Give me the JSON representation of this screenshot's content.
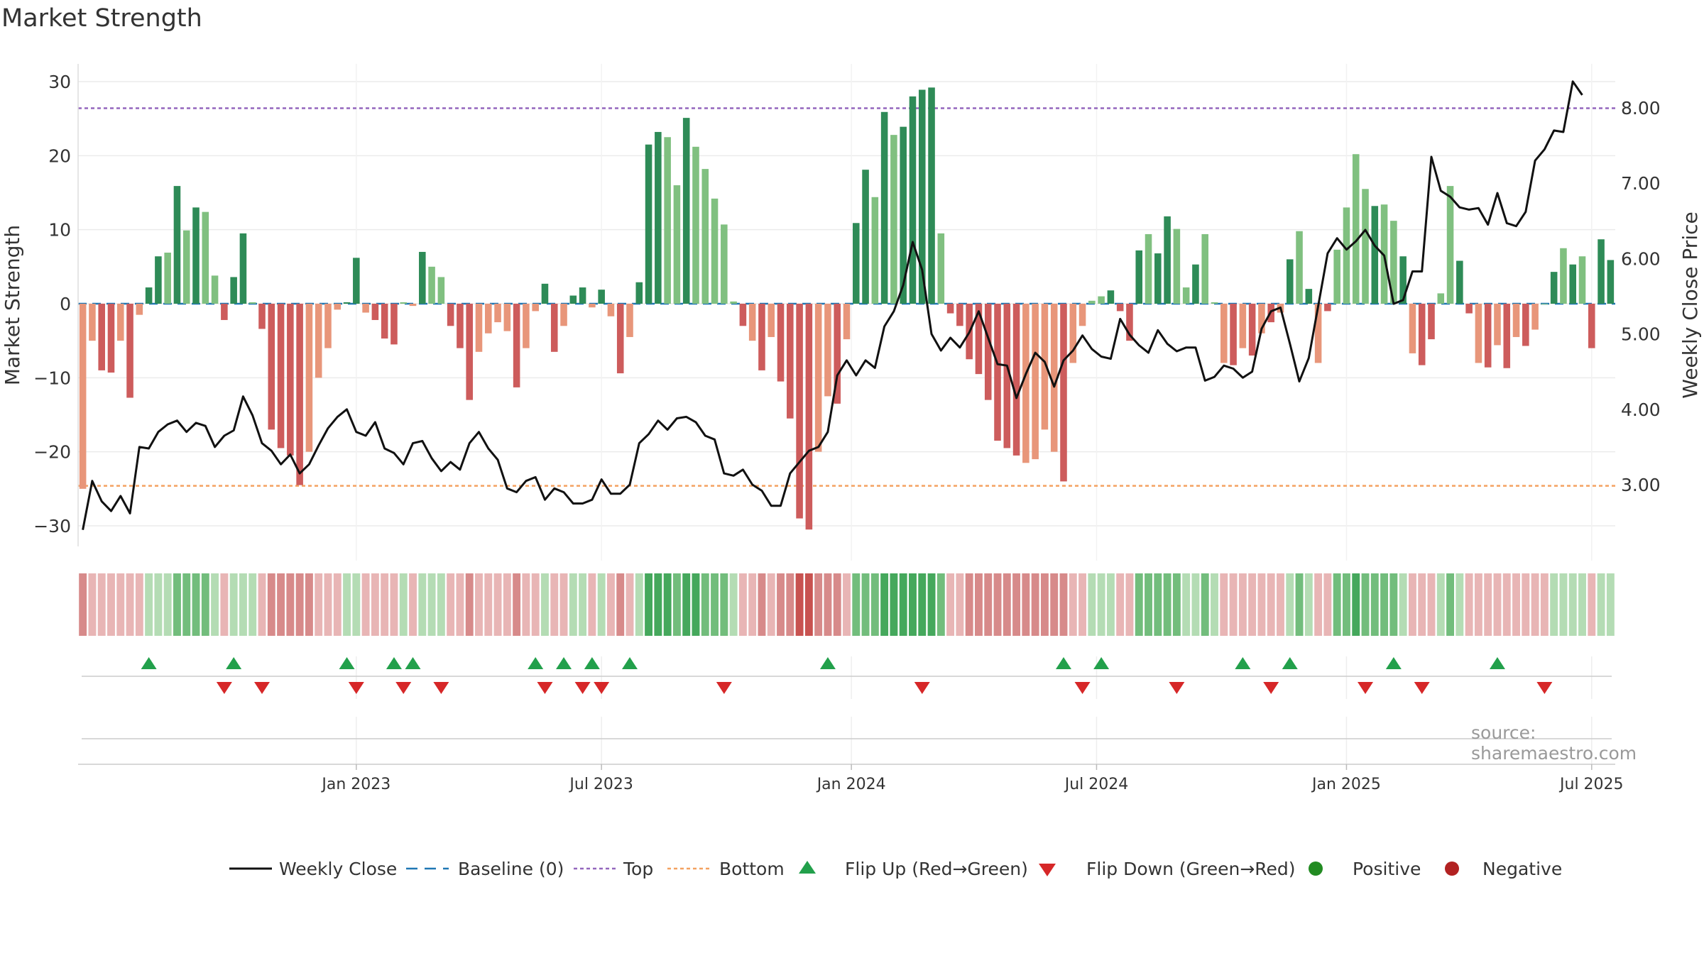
{
  "title": "Market Strength",
  "source": "source: sharemaestro.com",
  "colors": {
    "pos_dark": "#2e8b57",
    "pos_light": "#80c080",
    "neg_dark": "#cd5c5c",
    "neg_light": "#e8967a",
    "price_line": "#111111",
    "baseline": "#1f77b4",
    "top": "#9467bd",
    "bottom": "#f4a261",
    "flip_up": "#22a04b",
    "flip_down": "#d62728",
    "positive": "#228b22",
    "negative": "#b22222"
  },
  "chart_data": {
    "type": "bar",
    "title": "Market Strength",
    "ylabel": "Market Strength",
    "y2label": "Weekly Close Price",
    "ylim": [
      -33,
      32
    ],
    "y2lim": [
      2.2,
      8.55
    ],
    "yticks": [
      "30",
      "20",
      "10",
      "0",
      "−10",
      "−20",
      "−30"
    ],
    "y2ticks": [
      "8.00",
      "7.00",
      "6.00",
      "5.00",
      "4.00",
      "3.00"
    ],
    "top_line": 26.4,
    "bottom_line": -24.6,
    "xticks": [
      "Jan 2023",
      "Jul 2023",
      "Jan 2024",
      "Jul 2024",
      "Jan 2025",
      "Jul 2025"
    ],
    "xtick_weeks": [
      29,
      55,
      81.5,
      107.5,
      134,
      160
    ],
    "strength": [
      -25,
      -5,
      -9,
      -9.3,
      -5,
      -12.7,
      -1.5,
      2.2,
      6.4,
      6.9,
      15.9,
      9.9,
      13,
      12.4,
      3.8,
      -2.2,
      3.6,
      9.5,
      0.2,
      -3.4,
      -17,
      -19.5,
      -20.5,
      -24.5,
      -20,
      -10,
      -6,
      -0.8,
      0.2,
      6.2,
      -1.2,
      -2.2,
      -4.7,
      -5.5,
      0.2,
      -0.3,
      7,
      5,
      3.6,
      -3,
      -6,
      -13,
      -6.5,
      -4,
      -2.5,
      -3.7,
      -11.3,
      -6,
      -1,
      2.7,
      -6.5,
      -3,
      1.1,
      2.2,
      -0.5,
      1.9,
      -1.7,
      -9.4,
      -4.5,
      2.9,
      21.5,
      23.2,
      22.5,
      16,
      25.1,
      21.2,
      18.2,
      14.2,
      10.7,
      0.3,
      -3,
      -5,
      -9,
      -4.5,
      -10.5,
      -15.5,
      -29,
      -30.5,
      -20,
      -12.5,
      -13.5,
      -4.8,
      10.9,
      18.1,
      14.4,
      25.9,
      22.8,
      23.9,
      28,
      28.9,
      29.2,
      9.5,
      -1.3,
      -3,
      -7.5,
      -9.5,
      -13,
      -18.5,
      -19.5,
      -20.5,
      -21.5,
      -21,
      -17,
      -20,
      -24,
      -8,
      -3,
      0.4,
      1,
      1.8,
      -1,
      -5,
      7.2,
      9.4,
      6.8,
      11.8,
      10.1,
      2.2,
      5.3,
      9.4,
      0.2,
      -8,
      -8.3,
      -6,
      -7,
      -4,
      -2.5,
      -1.2,
      6,
      9.8,
      2,
      -8,
      -1,
      7.3,
      13,
      20.2,
      15.5,
      13.2,
      13.4,
      11.2,
      6.4,
      -6.7,
      -8.3,
      -4.8,
      1.4,
      15.9,
      5.8,
      -1.3,
      -8,
      -8.6,
      -5.6,
      -8.7,
      -4.5,
      -5.7,
      -3.5,
      0,
      4.3,
      7.5,
      5.3,
      6.4,
      -6,
      8.7,
      5.9
    ],
    "shade": [
      1,
      1,
      0,
      0,
      1,
      0,
      1,
      0,
      0,
      1,
      0,
      1,
      0,
      1,
      1,
      0,
      0,
      0,
      1,
      0,
      0,
      0,
      0,
      0,
      1,
      1,
      1,
      1,
      0,
      0,
      1,
      0,
      0,
      0,
      1,
      1,
      0,
      1,
      1,
      0,
      0,
      0,
      1,
      1,
      1,
      1,
      0,
      1,
      1,
      0,
      0,
      1,
      0,
      0,
      1,
      0,
      1,
      0,
      1,
      0,
      0,
      0,
      1,
      1,
      0,
      1,
      1,
      1,
      1,
      1,
      0,
      1,
      0,
      1,
      0,
      0,
      0,
      0,
      1,
      1,
      0,
      1,
      0,
      0,
      1,
      0,
      1,
      0,
      0,
      0,
      0,
      1,
      0,
      0,
      0,
      0,
      0,
      0,
      0,
      0,
      1,
      1,
      1,
      1,
      0,
      1,
      1,
      1,
      1,
      0,
      0,
      0,
      0,
      1,
      0,
      0,
      1,
      1,
      0,
      1,
      1,
      1,
      0,
      1,
      0,
      1,
      0,
      1,
      0,
      1,
      0,
      1,
      0,
      1,
      1,
      1,
      1,
      0,
      1,
      1,
      0,
      1,
      0,
      0,
      1,
      1,
      0,
      0,
      1,
      0,
      1,
      0,
      1,
      0,
      1,
      1,
      0,
      1,
      0,
      1
    ],
    "price": [
      2.4,
      3.05,
      2.78,
      2.65,
      2.85,
      2.62,
      3.5,
      3.48,
      3.7,
      3.8,
      3.85,
      3.7,
      3.82,
      3.78,
      3.5,
      3.65,
      3.72,
      4.17,
      3.92,
      3.55,
      3.45,
      3.27,
      3.4,
      3.15,
      3.27,
      3.52,
      3.75,
      3.9,
      4.0,
      3.7,
      3.65,
      3.83,
      3.48,
      3.42,
      3.27,
      3.55,
      3.58,
      3.35,
      3.18,
      3.3,
      3.2,
      3.55,
      3.7,
      3.48,
      3.33,
      2.95,
      2.9,
      3.05,
      3.1,
      2.8,
      2.95,
      2.9,
      2.75,
      2.75,
      2.8,
      3.07,
      2.88,
      2.88,
      3.0,
      3.55,
      3.67,
      3.85,
      3.73,
      3.88,
      3.9,
      3.83,
      3.65,
      3.6,
      3.15,
      3.12,
      3.2,
      3.0,
      2.92,
      2.72,
      2.72,
      3.15,
      3.3,
      3.45,
      3.5,
      3.7,
      4.45,
      4.65,
      4.45,
      4.65,
      4.55,
      5.1,
      5.3,
      5.65,
      6.22,
      5.85,
      5.0,
      4.78,
      4.95,
      4.82,
      5.02,
      5.3,
      4.95,
      4.6,
      4.58,
      4.15,
      4.47,
      4.75,
      4.63,
      4.3,
      4.65,
      4.78,
      4.98,
      4.8,
      4.7,
      4.67,
      5.2,
      4.99,
      4.85,
      4.75,
      5.05,
      4.87,
      4.77,
      4.82,
      4.82,
      4.38,
      4.43,
      4.58,
      4.54,
      4.42,
      4.5,
      5.07,
      5.3,
      5.35,
      4.87,
      4.37,
      4.68,
      5.37,
      6.07,
      6.27,
      6.12,
      6.23,
      6.38,
      6.17,
      6.04,
      5.4,
      5.45,
      5.83,
      5.83,
      7.35,
      6.9,
      6.82,
      6.68,
      6.65,
      6.67,
      6.45,
      6.87,
      6.47,
      6.43,
      6.62,
      7.3,
      7.45,
      7.7,
      7.68,
      8.35,
      8.17
    ],
    "heat": [
      -2,
      -1,
      -1,
      -1,
      -1,
      -1,
      -1,
      1,
      1,
      1,
      2,
      2,
      2,
      2,
      1,
      -1,
      1,
      1,
      1,
      -1,
      -2,
      -2,
      -2,
      -2,
      -2,
      -1,
      -1,
      -1,
      1,
      1,
      -1,
      -1,
      -1,
      -1,
      1,
      -1,
      1,
      1,
      1,
      -1,
      -1,
      -2,
      -1,
      -1,
      -1,
      -1,
      -2,
      -1,
      -1,
      1,
      -1,
      -1,
      1,
      1,
      -1,
      1,
      -1,
      -2,
      -1,
      1,
      3,
      3,
      3,
      2,
      3,
      3,
      2,
      2,
      2,
      1,
      -1,
      -1,
      -2,
      -1,
      -2,
      -2,
      -3,
      -3,
      -2,
      -2,
      -2,
      -1,
      2,
      2,
      2,
      3,
      3,
      3,
      3,
      3,
      3,
      2,
      -1,
      -1,
      -2,
      -2,
      -2,
      -2,
      -2,
      -2,
      -2,
      -2,
      -2,
      -2,
      -2,
      -1,
      -1,
      1,
      1,
      1,
      -1,
      -1,
      2,
      2,
      2,
      2,
      2,
      1,
      1,
      2,
      1,
      -1,
      -1,
      -1,
      -1,
      -1,
      -1,
      -1,
      1,
      2,
      1,
      -1,
      -1,
      2,
      2,
      3,
      2,
      2,
      2,
      2,
      1,
      -1,
      -1,
      -1,
      1,
      2,
      1,
      -1,
      -1,
      -1,
      -1,
      -1,
      -1,
      -1,
      -1,
      -1,
      1,
      1,
      1,
      1,
      -1,
      1,
      1
    ],
    "flips_up": [
      7,
      16,
      28,
      33,
      35,
      48,
      51,
      54,
      58,
      79,
      104,
      108,
      123,
      128,
      139,
      150
    ],
    "flips_down": [
      15,
      19,
      29,
      34,
      38,
      49,
      53,
      55,
      68,
      89,
      106,
      116,
      126,
      136,
      142,
      155
    ]
  },
  "legend": {
    "items": [
      {
        "label": "Weekly Close",
        "symbol": "line"
      },
      {
        "label": "Baseline (0)",
        "symbol": "dash"
      },
      {
        "label": "Top",
        "symbol": "dot-purple"
      },
      {
        "label": "Bottom",
        "symbol": "dot-orange"
      },
      {
        "label": "Flip Up (Red→Green)",
        "symbol": "tri-up"
      },
      {
        "label": "Flip Down (Green→Red)",
        "symbol": "tri-down"
      },
      {
        "label": "Positive",
        "symbol": "circle-pos"
      },
      {
        "label": "Negative",
        "symbol": "circle-neg"
      }
    ]
  }
}
